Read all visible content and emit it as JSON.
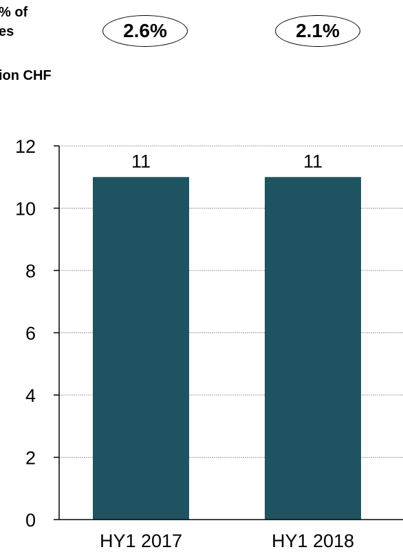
{
  "header": {
    "share_label_line1": "% of",
    "share_label_line2": "es",
    "unit_label": "ion CHF"
  },
  "share_percentages": [
    "2.6%",
    "2.1%"
  ],
  "colors": {
    "bar": "#1f5361",
    "grid": "#a0a0a0",
    "axis": "#000000"
  },
  "chart_data": {
    "type": "bar",
    "categories": [
      "HY1 2017",
      "HY1 2018"
    ],
    "values": [
      11,
      11
    ],
    "data_labels": [
      "11",
      "11"
    ],
    "ylim": [
      0,
      12
    ],
    "yticks": [
      0,
      2,
      4,
      6,
      8,
      10,
      12
    ],
    "grid": true,
    "xlabel": "",
    "ylabel": ""
  }
}
